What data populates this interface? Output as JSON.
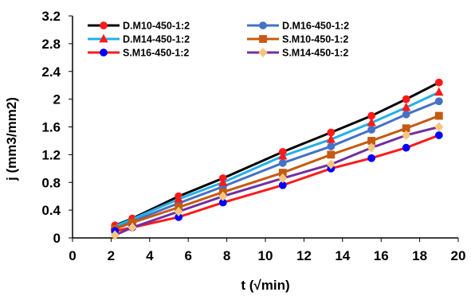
{
  "chart_data": {
    "type": "line",
    "title": "",
    "xlabel": "t (√min)",
    "ylabel": "j (mm3/mm2)",
    "xlim": [
      0,
      20
    ],
    "ylim": [
      0,
      3.2
    ],
    "xticks": [
      0,
      2,
      4,
      6,
      8,
      10,
      12,
      14,
      16,
      18,
      20
    ],
    "yticks": [
      0,
      0.4,
      0.8,
      1.2,
      1.6,
      2,
      2.4,
      2.8,
      3.2
    ],
    "grid": false,
    "legend_position": "top",
    "series": [
      {
        "name": "D.M10-450-1:2",
        "color": "#000000",
        "marker_color": "#ff1a1a",
        "marker": "circle",
        "x": [
          2.2,
          3.1,
          5.5,
          7.8,
          10.9,
          13.4,
          15.5,
          17.3,
          19.0
        ],
        "y": [
          0.18,
          0.28,
          0.6,
          0.86,
          1.24,
          1.52,
          1.76,
          2.0,
          2.24
        ]
      },
      {
        "name": "D.M16-450-1:2",
        "color": "#4472c4",
        "marker_color": "#4472c4",
        "marker": "circle",
        "x": [
          2.2,
          3.1,
          5.5,
          7.8,
          10.9,
          13.4,
          15.5,
          17.3,
          19.0
        ],
        "y": [
          0.14,
          0.24,
          0.5,
          0.74,
          1.08,
          1.32,
          1.56,
          1.78,
          1.97
        ]
      },
      {
        "name": "D.M14-450-1:2",
        "color": "#22b0e8",
        "marker_color": "#ff1a1a",
        "marker": "triangle",
        "x": [
          2.2,
          3.1,
          5.5,
          7.8,
          10.9,
          13.4,
          15.5,
          17.3,
          19.0
        ],
        "y": [
          0.17,
          0.27,
          0.56,
          0.8,
          1.18,
          1.42,
          1.66,
          1.88,
          2.1
        ]
      },
      {
        "name": "S.M10-450-1:2",
        "color": "#c55a11",
        "marker_color": "#c55a11",
        "marker": "square",
        "x": [
          2.2,
          3.1,
          5.5,
          7.8,
          10.9,
          13.4,
          15.5,
          17.3,
          19.0
        ],
        "y": [
          0.13,
          0.22,
          0.44,
          0.66,
          0.94,
          1.2,
          1.4,
          1.58,
          1.76
        ]
      },
      {
        "name": "S.M16-450-1:2",
        "color": "#ff1a1a",
        "marker_color": "#0000ff",
        "marker": "circle",
        "x": [
          2.2,
          3.1,
          5.5,
          7.8,
          10.9,
          13.4,
          15.5,
          17.3,
          19.0
        ],
        "y": [
          0.1,
          0.15,
          0.3,
          0.51,
          0.76,
          1.0,
          1.15,
          1.3,
          1.48
        ]
      },
      {
        "name": "S.M14-450-1:2",
        "color": "#7030a0",
        "marker_color": "#f5c77e",
        "marker": "diamond",
        "x": [
          2.2,
          3.1,
          5.5,
          7.8,
          10.9,
          13.4,
          15.5,
          17.3,
          19.0
        ],
        "y": [
          0.04,
          0.15,
          0.38,
          0.6,
          0.86,
          1.06,
          1.3,
          1.48,
          1.6
        ]
      }
    ]
  }
}
